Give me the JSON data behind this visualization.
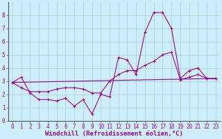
{
  "background_color": "#cceeff",
  "grid_color": "#aacccc",
  "line_color": "#990099",
  "marker": "+",
  "markersize": 3,
  "linewidth": 0.8,
  "xlim": [
    -0.5,
    23.5
  ],
  "ylim": [
    0,
    9
  ],
  "yticks": [
    0,
    1,
    2,
    3,
    4,
    5,
    6,
    7,
    8
  ],
  "xticks": [
    0,
    1,
    2,
    3,
    4,
    5,
    6,
    7,
    8,
    9,
    10,
    11,
    12,
    13,
    14,
    15,
    16,
    17,
    18,
    19,
    20,
    21,
    22,
    23
  ],
  "xlabel": "Windchill (Refroidissement éolien,°C)",
  "xlabel_fontsize": 6.5,
  "tick_fontsize": 5.5,
  "line1_x": [
    0,
    1,
    2,
    3,
    4,
    5,
    6,
    7,
    8,
    9,
    10,
    11,
    12,
    13,
    14,
    15,
    16,
    17,
    18,
    19,
    20,
    21,
    22,
    23
  ],
  "line1_y": [
    2.9,
    3.3,
    2.1,
    1.6,
    1.6,
    1.5,
    1.7,
    1.1,
    1.6,
    0.5,
    2.0,
    1.8,
    4.8,
    4.6,
    3.5,
    6.7,
    8.2,
    8.2,
    7.0,
    3.2,
    3.8,
    4.0,
    3.2,
    3.2
  ],
  "line2_x": [
    0,
    1,
    2,
    3,
    4,
    5,
    6,
    7,
    8,
    9,
    10,
    11,
    12,
    13,
    14,
    15,
    16,
    17,
    18,
    19,
    20,
    21,
    22,
    23
  ],
  "line2_y": [
    2.9,
    2.5,
    2.2,
    2.2,
    2.2,
    2.4,
    2.5,
    2.5,
    2.4,
    2.1,
    2.1,
    3.0,
    3.5,
    3.8,
    3.8,
    4.2,
    4.5,
    5.0,
    5.2,
    3.1,
    3.3,
    3.5,
    3.2,
    3.2
  ],
  "line3_x": [
    0,
    23
  ],
  "line3_y": [
    2.9,
    3.2
  ]
}
